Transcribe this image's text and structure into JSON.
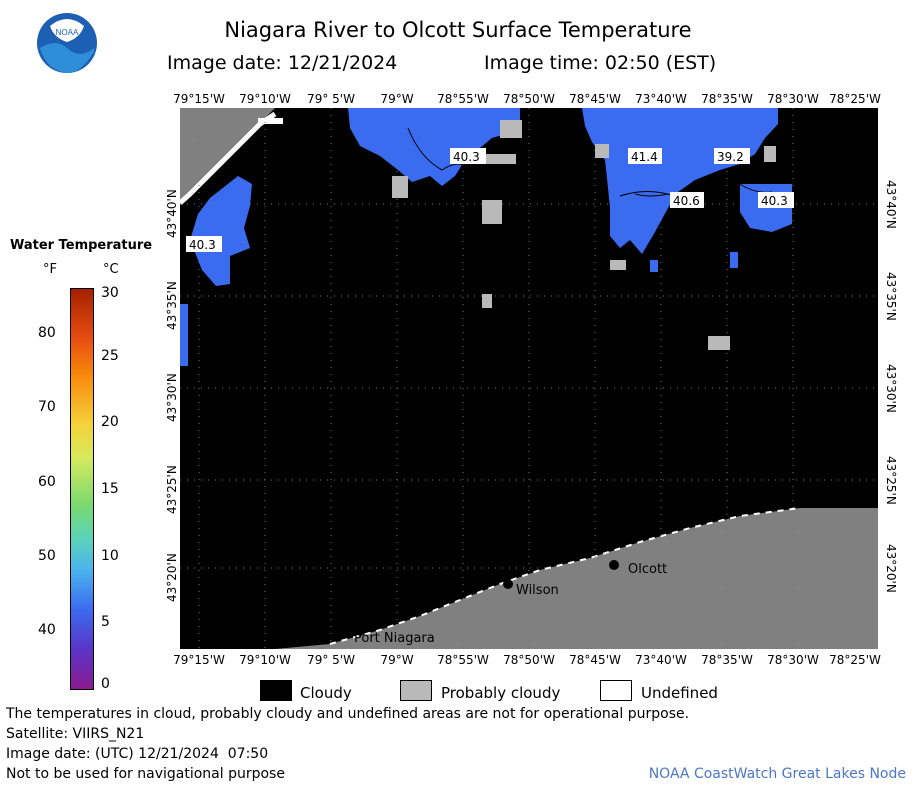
{
  "header": {
    "title": "Niagara River to Olcott Surface Temperature",
    "image_date": "Image date: 12/21/2024",
    "image_time": "Image time: 02:50 (EST)",
    "logo_text": "NOAA"
  },
  "map": {
    "longitudes": [
      "79°15'W",
      "79°10'W",
      "79° 5'W",
      "79°W",
      "78°55'W",
      "78°50'W",
      "78°45'W",
      "73°40'W",
      "78°35'W",
      "78°30'W",
      "78°25'W"
    ],
    "latitudes": [
      "43°40'N",
      "43°35'N",
      "43°30'N",
      "43°25'N",
      "43°20'N"
    ],
    "places": {
      "olcott": "Olcott",
      "wilson": "Wilson",
      "port_niagara": "Port Niagara"
    },
    "temperature_labels": [
      "40.3",
      "41.4",
      "39.2",
      "40.6",
      "40.3",
      "40.3"
    ]
  },
  "legend": {
    "title": "Water Temperature",
    "unit_f": "°F",
    "unit_c": "°C",
    "fahrenheit_ticks": [
      "80",
      "70",
      "60",
      "50",
      "40"
    ],
    "celsius_ticks": [
      "30",
      "25",
      "20",
      "15",
      "10",
      "5",
      "0"
    ],
    "categories": [
      {
        "label": "Cloudy",
        "color": "#000000"
      },
      {
        "label": "Probably cloudy",
        "color": "#b9b9b9"
      },
      {
        "label": "Undefined",
        "color": "#ffffff"
      }
    ]
  },
  "colors": {
    "water_blue": "#3b6cf0",
    "cloud": "#000000",
    "land": "#808080",
    "probably_cloudy": "#b9b9b9",
    "footer_link": "#4b77c7"
  },
  "footer": {
    "disclaimer": "The temperatures in cloud, probably cloudy and undefined areas are not for operational purpose.",
    "satellite": "Satellite: VIIRS_N21",
    "utc_date": "Image date: (UTC) 12/21/2024  07:50",
    "nav_warning": "Not to be used for navigational purpose",
    "source": "NOAA CoastWatch Great Lakes Node"
  }
}
